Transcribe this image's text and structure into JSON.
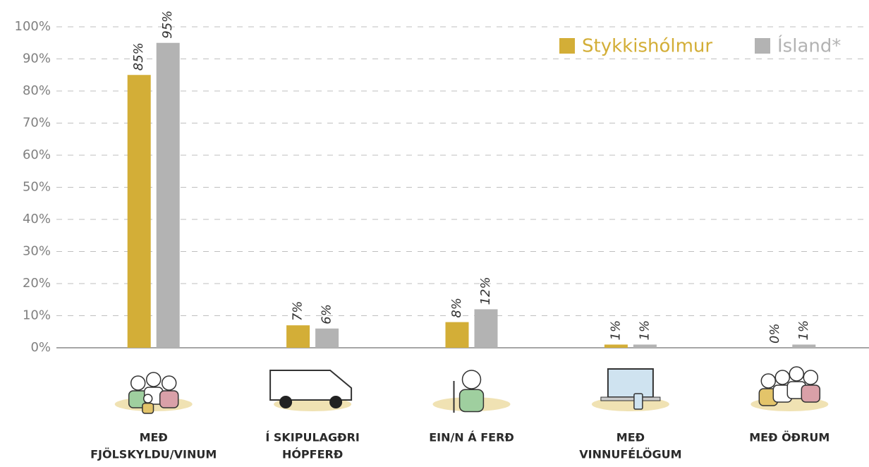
{
  "chart_data": {
    "type": "bar",
    "categories": [
      [
        "MEÐ",
        "FJÖLSKYLDU/VINUM"
      ],
      [
        "Í SKIPULAGÐRI",
        "HÓPFERÐ"
      ],
      [
        "EIN/N Á FERÐ"
      ],
      [
        "MEÐ",
        "VINNUFÉLÖGUM"
      ],
      [
        "MEÐ ÖÐRUM"
      ]
    ],
    "series": [
      {
        "name": "Stykkishólmur",
        "color": "#d3ae37",
        "values": [
          85,
          7,
          8,
          1,
          0
        ],
        "value_labels": [
          "85%",
          "7%",
          "8%",
          "1%",
          "0%"
        ]
      },
      {
        "name": "Ísland*",
        "color": "#b3b3b3",
        "values": [
          95,
          6,
          12,
          1,
          1
        ],
        "value_labels": [
          "95%",
          "6%",
          "12%",
          "1%",
          "1%"
        ]
      }
    ],
    "ylim": [
      0,
      100
    ],
    "yticks": [
      {
        "value": 0,
        "label": "0%"
      },
      {
        "value": 10,
        "label": "10%"
      },
      {
        "value": 20,
        "label": "20%"
      },
      {
        "value": 30,
        "label": "30%"
      },
      {
        "value": 40,
        "label": "40%"
      },
      {
        "value": 50,
        "label": "50%"
      },
      {
        "value": 60,
        "label": "60%"
      },
      {
        "value": 70,
        "label": "70%"
      },
      {
        "value": 80,
        "label": "80%"
      },
      {
        "value": 90,
        "label": "90%"
      },
      {
        "value": 100,
        "label": "100%"
      }
    ],
    "grid": true,
    "legend": "top-right"
  }
}
